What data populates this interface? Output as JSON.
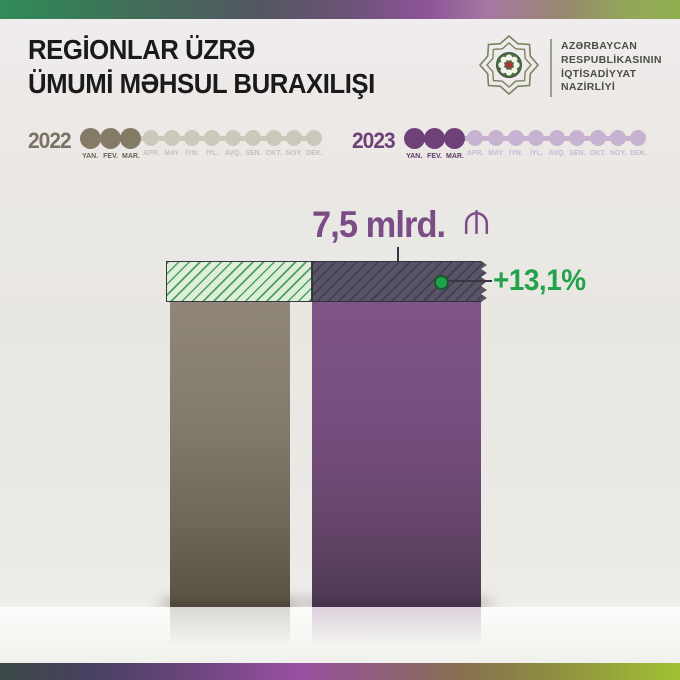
{
  "header": {
    "title_line1": "REGİONLAR ÜZRƏ",
    "title_line2": "ÜMUMİ MƏHSUL BURAXILIŞI",
    "ministry_lines": [
      "AZƏRBAYCAN",
      "RESPUBLİKASININ",
      "İQTİSADİYYAT",
      "NAZİRLİYİ"
    ]
  },
  "timelines": [
    {
      "year": "2022",
      "months": [
        "YAN.",
        "FEV.",
        "MAR.",
        "APR.",
        "MAY",
        "İYN.",
        "İYL.",
        "AVQ.",
        "SEN.",
        "OKT.",
        "NOY.",
        "DEK."
      ],
      "active_months": 3,
      "year_color": "#7b7265",
      "active_dot_color": "#847b66",
      "inactive_dot_color": "#cbc9bc",
      "active_label_color": "#6b6353",
      "inactive_label_color": "#c5c3b5"
    },
    {
      "year": "2023",
      "months": [
        "YAN.",
        "FEV.",
        "MAR.",
        "APR.",
        "MAY",
        "İYN.",
        "İYL.",
        "AVQ.",
        "SEN.",
        "OKT.",
        "NOY.",
        "DEK."
      ],
      "active_months": 3,
      "year_color": "#6e4178",
      "active_dot_color": "#6e4178",
      "inactive_dot_color": "#c7b3d1",
      "active_label_color": "#5e3a68",
      "inactive_label_color": "#c9b9d3"
    }
  ],
  "chart_data": {
    "type": "bar",
    "title": "Regionlar üzrə ümumi məhsul buraxılışı",
    "categories": [
      "2022",
      "2023"
    ],
    "series": [
      {
        "name": "Ümumi məhsul buraxılışı (yanvar–mart)",
        "values": [
          6.63,
          7.5
        ],
        "note": "2022 value estimated from +13,1% growth; only 2023 value labeled"
      }
    ],
    "unit": "mlrd. ₼",
    "value_label": "7,5 mlrd.",
    "currency_symbol_name": "manat-sign",
    "growth_label": "+13,1%",
    "growth_pct": 13.1,
    "bar_colors": {
      "2022": "#7c7466",
      "2023": "#764f7f"
    },
    "increment_strip_color": "#595366",
    "gap_strip_color": "#ddefd8",
    "legend_position": "none",
    "grid": false
  },
  "colors": {
    "background": "#e9e7e2",
    "accent_green": "#23a24b",
    "accent_purple": "#7b4d87",
    "top_gradient": [
      "#2f8c59",
      "#8d5598",
      "#8fae4e"
    ],
    "bottom_gradient": [
      "#3c4a45",
      "#9950a2",
      "#a0c133"
    ]
  }
}
